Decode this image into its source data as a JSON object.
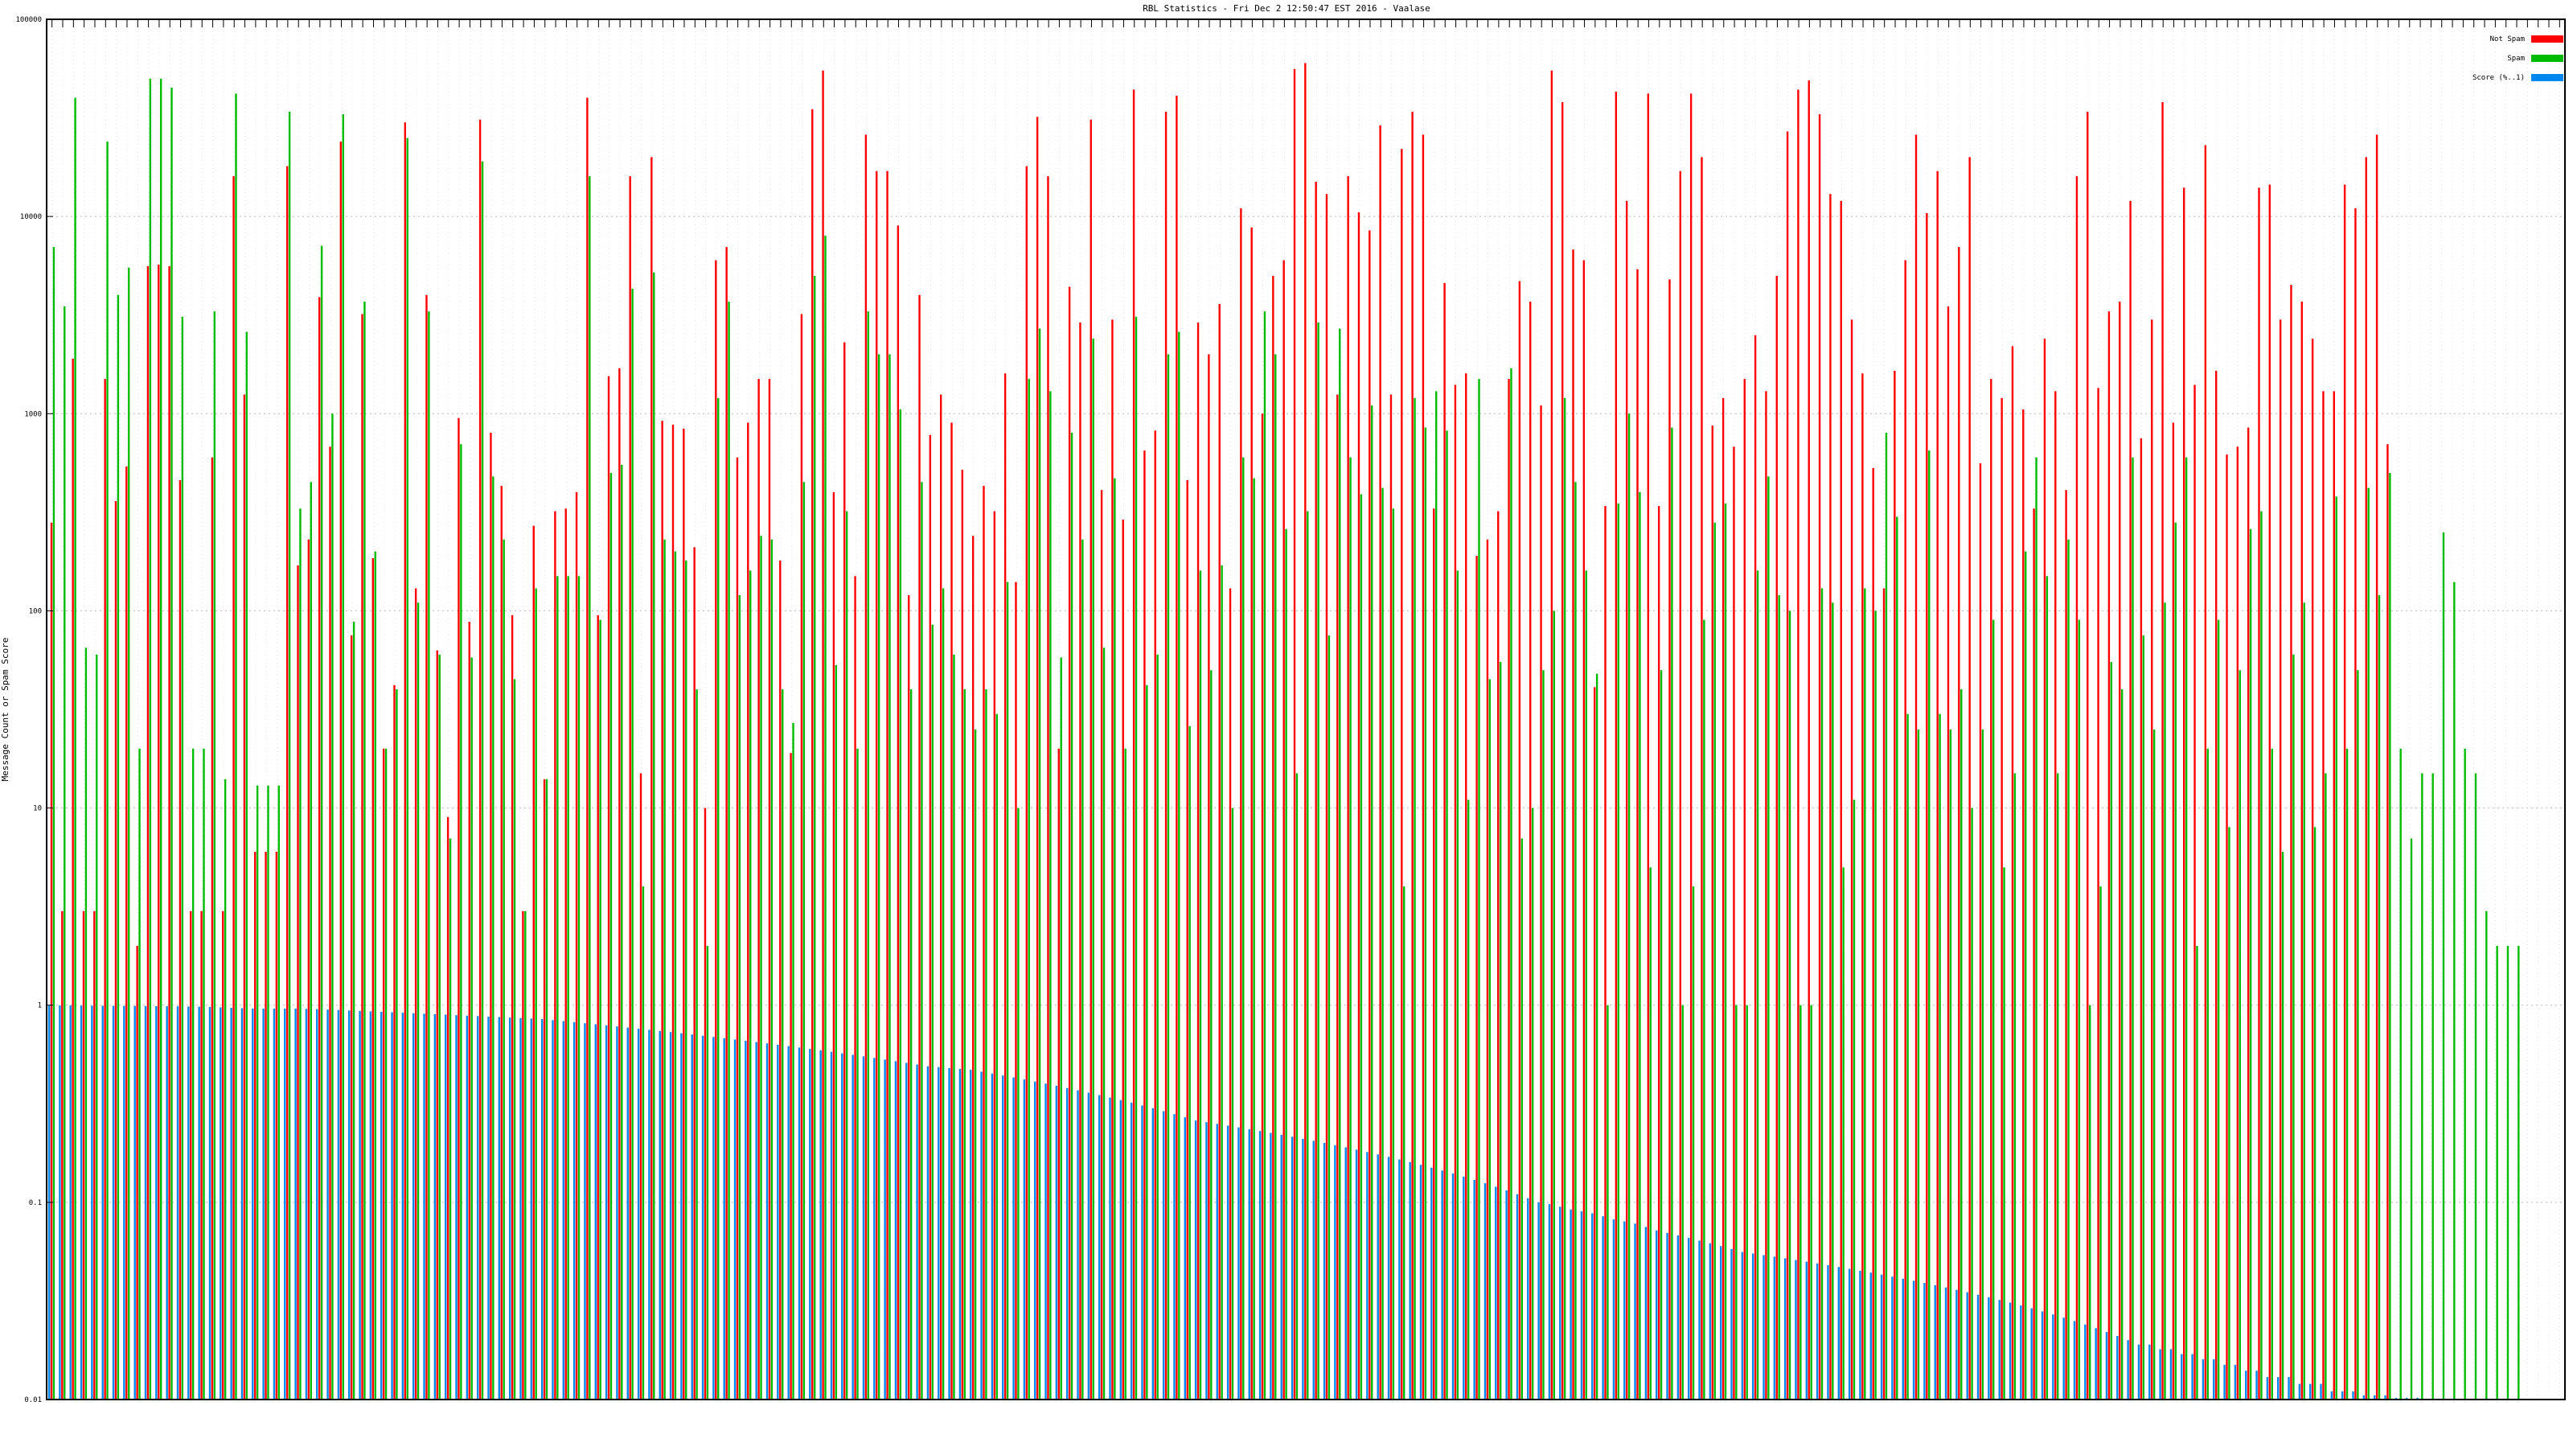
{
  "chart_data": {
    "type": "bar",
    "title": "RBL Statistics - Fri Dec  2 12:50:47 EST 2016 - Vaalase",
    "ylabel": "Message Count or Spam Score",
    "xlabel": "",
    "yscale": "log",
    "ylim": [
      0.01,
      100000
    ],
    "yticks": [
      "0.01",
      "0.1",
      "1",
      "10",
      "100",
      "1000",
      "10000",
      "100000"
    ],
    "grid": true,
    "legend_position": "top-right",
    "series": [
      {
        "name": "Not Spam",
        "color": "#ff0000",
        "values": [
          280,
          3,
          1900,
          3,
          3,
          1500,
          360,
          540,
          2,
          5600,
          5700,
          5600,
          460,
          3,
          3,
          600,
          3,
          16000,
          1250,
          6,
          6,
          6,
          18000,
          170,
          230,
          3900,
          680,
          24000,
          75,
          3200,
          185,
          20,
          42,
          30000,
          130,
          4000,
          63,
          9,
          950,
          88,
          31000,
          800,
          430,
          95,
          3,
          270,
          14,
          320,
          330,
          400,
          40000,
          95,
          1550,
          1700,
          16000,
          15,
          20000,
          920,
          880,
          840,
          210,
          10,
          6000,
          7000,
          600,
          900,
          1500,
          1500,
          180,
          19,
          3200,
          35000,
          55000,
          400,
          2300,
          150,
          26000,
          17000,
          17000,
          9000,
          120,
          4000,
          780,
          1250,
          900,
          520,
          240,
          430,
          320,
          1600,
          140,
          18000,
          32000,
          16000,
          20,
          4400,
          2900,
          31000,
          410,
          3000,
          290,
          44000,
          650,
          820,
          34000,
          41000,
          460,
          2900,
          2000,
          3600,
          130,
          11000,
          8800,
          1000,
          5000,
          6000,
          56000,
          60000,
          15000,
          13000,
          1250,
          16000,
          10500,
          8500,
          29000,
          1250,
          22000,
          34000,
          26000,
          330,
          4600,
          1400,
          1600,
          190,
          230,
          320,
          1500,
          4700,
          3700,
          1100,
          55000,
          38000,
          6800,
          6000,
          41,
          340,
          43000,
          12000,
          5400,
          42000,
          340,
          4800,
          17000,
          42000,
          20000,
          870,
          1200,
          680,
          1500,
          2500,
          1300,
          5000,
          27000,
          44000,
          49000,
          33000,
          13000,
          12000,
          3000,
          1600,
          530,
          130,
          1650,
          6000,
          26000,
          10400,
          17000,
          3500,
          7000,
          20000,
          560,
          1500,
          1200,
          2200,
          1050,
          330,
          2400,
          1300,
          410,
          16000,
          34000,
          1350,
          3300,
          3700,
          12000,
          750,
          3000,
          38000,
          900,
          14000,
          1400,
          23000,
          1650,
          620,
          680,
          850,
          14000,
          14500,
          3000,
          4500,
          3700,
          2400,
          1300,
          1300,
          14500,
          11000,
          20000,
          26000,
          700
        ]
      },
      {
        "name": "Spam",
        "color": "#00bb00",
        "values": [
          7000,
          3500,
          40000,
          65,
          60,
          24000,
          4000,
          5500,
          20,
          50000,
          50000,
          45000,
          3100,
          20,
          20,
          3300,
          14,
          42000,
          2600,
          13,
          13,
          13,
          34000,
          330,
          450,
          7100,
          1000,
          33000,
          88,
          3700,
          200,
          20,
          40,
          25000,
          110,
          3300,
          60,
          7,
          700,
          58,
          19000,
          480,
          230,
          45,
          3,
          130,
          14,
          150,
          150,
          150,
          16000,
          90,
          500,
          550,
          4300,
          4,
          5200,
          230,
          200,
          180,
          40,
          2,
          1200,
          3700,
          120,
          160,
          240,
          230,
          40,
          27,
          450,
          5000,
          8000,
          53,
          320,
          20,
          3300,
          2000,
          2000,
          1050,
          40,
          450,
          85,
          130,
          60,
          40,
          25,
          40,
          30,
          140,
          10,
          1500,
          2700,
          1300,
          58,
          800,
          230,
          2400,
          65,
          470,
          20,
          3100,
          42,
          60,
          2000,
          2600,
          26,
          160,
          50,
          170,
          10,
          600,
          470,
          3300,
          2000,
          260,
          15,
          320,
          2900,
          75,
          2700,
          600,
          390,
          1100,
          420,
          330,
          4,
          1200,
          850,
          1300,
          820,
          160,
          11,
          1500,
          45,
          55,
          1700,
          7,
          10,
          50,
          100,
          1200,
          450,
          160,
          48,
          1,
          350,
          1000,
          400,
          5,
          50,
          850,
          1,
          4,
          90,
          280,
          350,
          1,
          1,
          160,
          480,
          120,
          100,
          1,
          1,
          130,
          110,
          5,
          11,
          130,
          100,
          800,
          300,
          30,
          25,
          650,
          30,
          25,
          40,
          10,
          25,
          90,
          5,
          15,
          200,
          600,
          150,
          15,
          230,
          90,
          1,
          4,
          55,
          40,
          600,
          75,
          25,
          110,
          280,
          600,
          2,
          20,
          90,
          8,
          50,
          260,
          320,
          20,
          6,
          60,
          110,
          8,
          15,
          380,
          20,
          50,
          420,
          120,
          500,
          20,
          7,
          15,
          15,
          250,
          140,
          20,
          15,
          3,
          2,
          2,
          2
        ]
      },
      {
        "name": "Score (%..1)",
        "color": "#0088ee",
        "values": [
          0.998,
          0.997,
          0.996,
          0.995,
          0.994,
          0.993,
          0.992,
          0.991,
          0.99,
          0.989,
          0.988,
          0.987,
          0.986,
          0.984,
          0.982,
          0.98,
          0.975,
          0.97,
          0.965,
          0.96,
          0.96,
          0.96,
          0.96,
          0.96,
          0.958,
          0.955,
          0.95,
          0.945,
          0.94,
          0.935,
          0.93,
          0.925,
          0.92,
          0.915,
          0.91,
          0.905,
          0.9,
          0.895,
          0.89,
          0.885,
          0.88,
          0.875,
          0.87,
          0.865,
          0.86,
          0.855,
          0.85,
          0.84,
          0.83,
          0.82,
          0.81,
          0.8,
          0.79,
          0.78,
          0.77,
          0.76,
          0.75,
          0.74,
          0.73,
          0.72,
          0.71,
          0.7,
          0.69,
          0.68,
          0.67,
          0.66,
          0.65,
          0.64,
          0.63,
          0.62,
          0.61,
          0.6,
          0.59,
          0.58,
          0.57,
          0.56,
          0.55,
          0.54,
          0.53,
          0.52,
          0.51,
          0.5,
          0.49,
          0.485,
          0.48,
          0.475,
          0.47,
          0.46,
          0.45,
          0.44,
          0.43,
          0.42,
          0.41,
          0.4,
          0.39,
          0.38,
          0.37,
          0.36,
          0.35,
          0.34,
          0.33,
          0.32,
          0.31,
          0.3,
          0.29,
          0.28,
          0.27,
          0.26,
          0.255,
          0.25,
          0.245,
          0.24,
          0.235,
          0.23,
          0.225,
          0.22,
          0.215,
          0.21,
          0.205,
          0.2,
          0.195,
          0.19,
          0.185,
          0.18,
          0.175,
          0.17,
          0.165,
          0.16,
          0.155,
          0.15,
          0.145,
          0.14,
          0.135,
          0.13,
          0.125,
          0.12,
          0.115,
          0.11,
          0.105,
          0.1,
          0.098,
          0.095,
          0.092,
          0.09,
          0.088,
          0.085,
          0.082,
          0.08,
          0.078,
          0.075,
          0.072,
          0.07,
          0.068,
          0.066,
          0.064,
          0.062,
          0.06,
          0.058,
          0.056,
          0.055,
          0.054,
          0.053,
          0.052,
          0.051,
          0.05,
          0.049,
          0.048,
          0.047,
          0.046,
          0.045,
          0.044,
          0.043,
          0.042,
          0.041,
          0.04,
          0.039,
          0.038,
          0.037,
          0.036,
          0.035,
          0.034,
          0.033,
          0.032,
          0.031,
          0.03,
          0.029,
          0.028,
          0.027,
          0.026,
          0.025,
          0.024,
          0.023,
          0.022,
          0.021,
          0.02,
          0.019,
          0.019,
          0.018,
          0.018,
          0.017,
          0.017,
          0.016,
          0.016,
          0.015,
          0.015,
          0.014,
          0.014,
          0.013,
          0.013,
          0.013,
          0.012,
          0.012,
          0.012,
          0.011,
          0.011,
          0.011,
          0.0105,
          0.0105,
          0.0105,
          0.0102,
          0.0102,
          0.0102,
          0.0101,
          0.0101,
          0.0101,
          0.0101,
          0.0101,
          0.0101,
          0.0101,
          0.0101,
          0.0101,
          0.0101,
          0.0101,
          0.0101,
          0.0101
        ]
      }
    ]
  }
}
